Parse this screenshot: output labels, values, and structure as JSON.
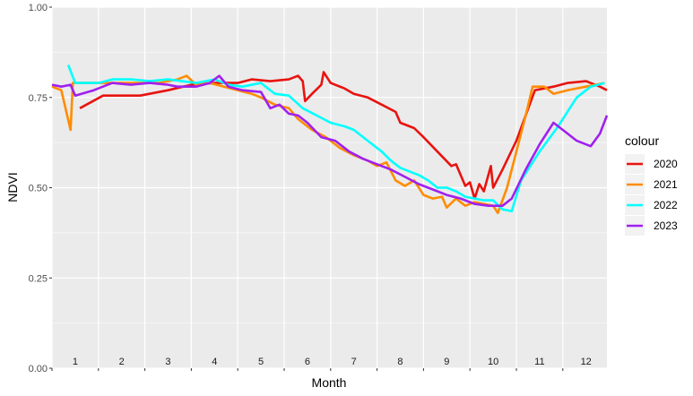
{
  "chart_data": {
    "type": "line",
    "title": "",
    "xlabel": "Month",
    "ylabel": "NDVI",
    "xlim": [
      0.5,
      12.45
    ],
    "ylim": [
      0,
      1
    ],
    "y_ticks": [
      "0.00",
      "0.25",
      "0.50",
      "0.75",
      "1.00"
    ],
    "x_tick_labels": [
      "1",
      "2",
      "3",
      "4",
      "5",
      "6",
      "7",
      "8",
      "9",
      "10",
      "11",
      "12"
    ],
    "grid": true,
    "background": "#EBEBEB",
    "legend_title": "colour",
    "legend_position": "right",
    "series": [
      {
        "name": "2020",
        "color": "#E8130F",
        "points": [
          [
            1.1,
            0.72
          ],
          [
            1.6,
            0.755
          ],
          [
            2.4,
            0.755
          ],
          [
            3.0,
            0.77
          ],
          [
            3.5,
            0.785
          ],
          [
            4.0,
            0.79
          ],
          [
            4.5,
            0.79
          ],
          [
            4.8,
            0.8
          ],
          [
            5.2,
            0.795
          ],
          [
            5.6,
            0.8
          ],
          [
            5.8,
            0.81
          ],
          [
            5.9,
            0.795
          ],
          [
            5.95,
            0.74
          ],
          [
            6.1,
            0.76
          ],
          [
            6.3,
            0.785
          ],
          [
            6.35,
            0.82
          ],
          [
            6.5,
            0.79
          ],
          [
            6.8,
            0.775
          ],
          [
            7.0,
            0.76
          ],
          [
            7.3,
            0.75
          ],
          [
            7.6,
            0.73
          ],
          [
            7.9,
            0.71
          ],
          [
            8.0,
            0.68
          ],
          [
            8.3,
            0.665
          ],
          [
            8.5,
            0.64
          ],
          [
            8.8,
            0.6
          ],
          [
            9.1,
            0.56
          ],
          [
            9.2,
            0.565
          ],
          [
            9.4,
            0.505
          ],
          [
            9.5,
            0.515
          ],
          [
            9.6,
            0.47
          ],
          [
            9.7,
            0.51
          ],
          [
            9.8,
            0.49
          ],
          [
            9.95,
            0.56
          ],
          [
            10.0,
            0.5
          ],
          [
            10.2,
            0.55
          ],
          [
            10.5,
            0.63
          ],
          [
            10.9,
            0.77
          ],
          [
            11.3,
            0.78
          ],
          [
            11.6,
            0.79
          ],
          [
            12.0,
            0.795
          ],
          [
            12.3,
            0.78
          ],
          [
            12.45,
            0.77
          ]
        ]
      },
      {
        "name": "2021",
        "color": "#FF8C00",
        "points": [
          [
            0.5,
            0.78
          ],
          [
            0.7,
            0.77
          ],
          [
            0.9,
            0.66
          ],
          [
            0.95,
            0.79
          ],
          [
            1.5,
            0.79
          ],
          [
            2.0,
            0.79
          ],
          [
            2.5,
            0.79
          ],
          [
            2.8,
            0.79
          ],
          [
            3.2,
            0.8
          ],
          [
            3.4,
            0.81
          ],
          [
            3.6,
            0.785
          ],
          [
            3.9,
            0.79
          ],
          [
            4.2,
            0.78
          ],
          [
            4.5,
            0.77
          ],
          [
            4.8,
            0.76
          ],
          [
            5.0,
            0.75
          ],
          [
            5.3,
            0.73
          ],
          [
            5.6,
            0.72
          ],
          [
            5.8,
            0.69
          ],
          [
            6.1,
            0.66
          ],
          [
            6.4,
            0.64
          ],
          [
            6.7,
            0.61
          ],
          [
            7.0,
            0.59
          ],
          [
            7.3,
            0.575
          ],
          [
            7.5,
            0.56
          ],
          [
            7.7,
            0.57
          ],
          [
            7.9,
            0.52
          ],
          [
            8.1,
            0.505
          ],
          [
            8.3,
            0.52
          ],
          [
            8.5,
            0.48
          ],
          [
            8.7,
            0.47
          ],
          [
            8.9,
            0.475
          ],
          [
            9.0,
            0.445
          ],
          [
            9.2,
            0.47
          ],
          [
            9.4,
            0.45
          ],
          [
            9.6,
            0.46
          ],
          [
            9.8,
            0.455
          ],
          [
            10.0,
            0.45
          ],
          [
            10.1,
            0.43
          ],
          [
            10.3,
            0.5
          ],
          [
            10.5,
            0.6
          ],
          [
            10.7,
            0.7
          ],
          [
            10.85,
            0.78
          ],
          [
            11.1,
            0.78
          ],
          [
            11.3,
            0.76
          ],
          [
            11.6,
            0.77
          ],
          [
            12.0,
            0.78
          ],
          [
            12.4,
            0.79
          ]
        ]
      },
      {
        "name": "2022",
        "color": "#00FFFF",
        "points": [
          [
            0.85,
            0.84
          ],
          [
            1.0,
            0.79
          ],
          [
            1.5,
            0.79
          ],
          [
            1.8,
            0.8
          ],
          [
            2.2,
            0.8
          ],
          [
            2.6,
            0.795
          ],
          [
            3.0,
            0.8
          ],
          [
            3.3,
            0.795
          ],
          [
            3.6,
            0.79
          ],
          [
            4.0,
            0.8
          ],
          [
            4.3,
            0.785
          ],
          [
            4.6,
            0.78
          ],
          [
            5.0,
            0.79
          ],
          [
            5.3,
            0.76
          ],
          [
            5.6,
            0.755
          ],
          [
            5.9,
            0.72
          ],
          [
            6.2,
            0.7
          ],
          [
            6.5,
            0.68
          ],
          [
            6.8,
            0.67
          ],
          [
            7.0,
            0.66
          ],
          [
            7.3,
            0.63
          ],
          [
            7.6,
            0.6
          ],
          [
            7.8,
            0.575
          ],
          [
            8.0,
            0.555
          ],
          [
            8.2,
            0.545
          ],
          [
            8.4,
            0.535
          ],
          [
            8.6,
            0.52
          ],
          [
            8.8,
            0.5
          ],
          [
            9.0,
            0.5
          ],
          [
            9.2,
            0.49
          ],
          [
            9.4,
            0.475
          ],
          [
            9.6,
            0.47
          ],
          [
            9.8,
            0.465
          ],
          [
            10.0,
            0.465
          ],
          [
            10.2,
            0.44
          ],
          [
            10.4,
            0.435
          ],
          [
            10.6,
            0.52
          ],
          [
            11.0,
            0.6
          ],
          [
            11.4,
            0.67
          ],
          [
            11.8,
            0.75
          ],
          [
            12.1,
            0.78
          ],
          [
            12.4,
            0.79
          ]
        ]
      },
      {
        "name": "2023",
        "color": "#A020F0",
        "points": [
          [
            0.5,
            0.785
          ],
          [
            0.7,
            0.78
          ],
          [
            0.9,
            0.785
          ],
          [
            1.0,
            0.755
          ],
          [
            1.4,
            0.77
          ],
          [
            1.8,
            0.79
          ],
          [
            2.2,
            0.785
          ],
          [
            2.6,
            0.79
          ],
          [
            3.0,
            0.785
          ],
          [
            3.2,
            0.78
          ],
          [
            3.6,
            0.78
          ],
          [
            3.9,
            0.79
          ],
          [
            4.1,
            0.81
          ],
          [
            4.3,
            0.78
          ],
          [
            4.6,
            0.77
          ],
          [
            5.0,
            0.765
          ],
          [
            5.2,
            0.72
          ],
          [
            5.4,
            0.73
          ],
          [
            5.6,
            0.705
          ],
          [
            5.8,
            0.7
          ],
          [
            6.0,
            0.68
          ],
          [
            6.3,
            0.64
          ],
          [
            6.6,
            0.63
          ],
          [
            6.9,
            0.6
          ],
          [
            7.2,
            0.58
          ],
          [
            7.5,
            0.565
          ],
          [
            7.8,
            0.55
          ],
          [
            8.1,
            0.53
          ],
          [
            8.4,
            0.51
          ],
          [
            8.7,
            0.495
          ],
          [
            9.0,
            0.48
          ],
          [
            9.3,
            0.47
          ],
          [
            9.6,
            0.455
          ],
          [
            9.9,
            0.45
          ],
          [
            10.2,
            0.45
          ],
          [
            10.4,
            0.47
          ],
          [
            10.7,
            0.55
          ],
          [
            11.0,
            0.62
          ],
          [
            11.3,
            0.68
          ],
          [
            11.5,
            0.66
          ],
          [
            11.8,
            0.63
          ],
          [
            12.1,
            0.615
          ],
          [
            12.3,
            0.65
          ],
          [
            12.45,
            0.7
          ]
        ]
      }
    ]
  }
}
